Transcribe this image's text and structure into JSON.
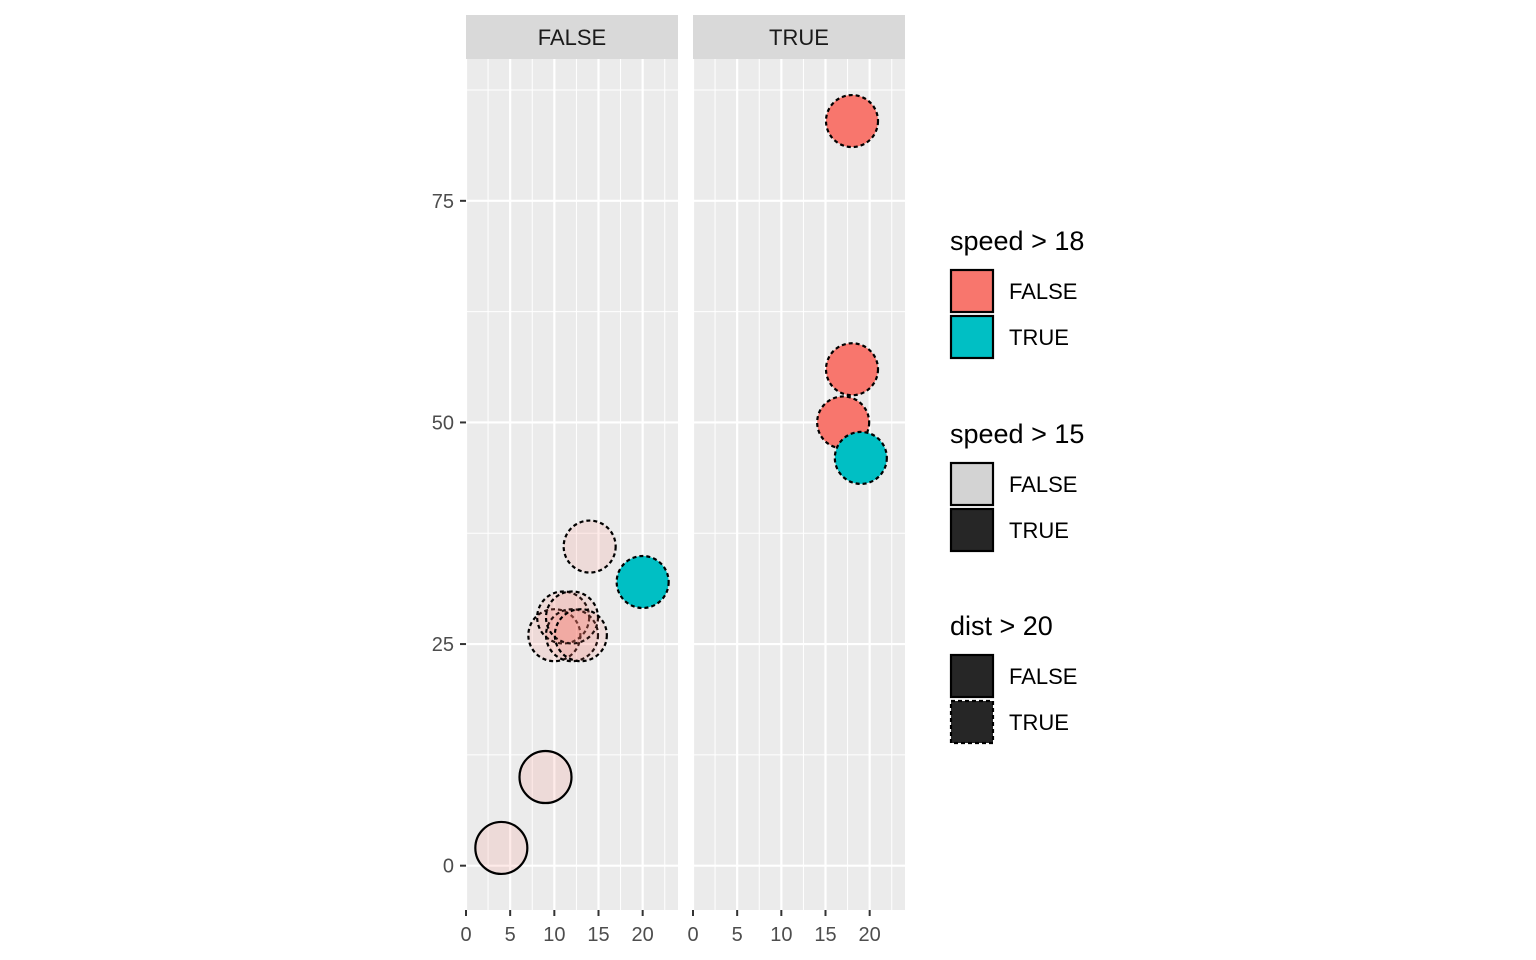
{
  "chart_data": {
    "type": "scatter",
    "facet_variable_values": [
      "FALSE",
      "TRUE"
    ],
    "x_ticks": [
      0,
      5,
      10,
      15,
      20
    ],
    "y_ticks": [
      0,
      25,
      50,
      75
    ],
    "xlim": [
      0,
      24
    ],
    "ylim": [
      -5,
      91
    ],
    "grid": true,
    "legend_position": "right",
    "points": [
      {
        "panel": "FALSE",
        "x": 4,
        "y": 2,
        "fill": "speed_gt_18_false",
        "alpha": 0.15,
        "linetype": "solid"
      },
      {
        "panel": "FALSE",
        "x": 9,
        "y": 10,
        "fill": "speed_gt_18_false",
        "alpha": 0.15,
        "linetype": "solid"
      },
      {
        "panel": "FALSE",
        "x": 10,
        "y": 26,
        "fill": "speed_gt_18_false",
        "alpha": 0.15,
        "linetype": "dashed"
      },
      {
        "panel": "FALSE",
        "x": 11,
        "y": 28,
        "fill": "speed_gt_18_false",
        "alpha": 0.15,
        "linetype": "dashed"
      },
      {
        "panel": "FALSE",
        "x": 12,
        "y": 26,
        "fill": "speed_gt_18_false",
        "alpha": 0.15,
        "linetype": "dashed"
      },
      {
        "panel": "FALSE",
        "x": 12,
        "y": 28,
        "fill": "speed_gt_18_false",
        "alpha": 0.15,
        "linetype": "dashed"
      },
      {
        "panel": "FALSE",
        "x": 13,
        "y": 26,
        "fill": "speed_gt_18_false",
        "alpha": 0.15,
        "linetype": "dashed"
      },
      {
        "panel": "FALSE",
        "x": 14,
        "y": 36,
        "fill": "speed_gt_18_false",
        "alpha": 0.15,
        "linetype": "dashed"
      },
      {
        "panel": "FALSE",
        "x": 20,
        "y": 32,
        "fill": "speed_gt_18_true",
        "alpha": 1.0,
        "linetype": "dashed"
      },
      {
        "panel": "TRUE",
        "x": 18,
        "y": 84,
        "fill": "speed_gt_18_false",
        "alpha": 1.0,
        "linetype": "dashed"
      },
      {
        "panel": "TRUE",
        "x": 18,
        "y": 56,
        "fill": "speed_gt_18_false",
        "alpha": 1.0,
        "linetype": "dashed"
      },
      {
        "panel": "TRUE",
        "x": 17,
        "y": 50,
        "fill": "speed_gt_18_false",
        "alpha": 1.0,
        "linetype": "dashed"
      },
      {
        "panel": "TRUE",
        "x": 19,
        "y": 46,
        "fill": "speed_gt_18_true",
        "alpha": 1.0,
        "linetype": "dashed"
      }
    ],
    "legends": [
      {
        "title": "speed > 18",
        "aesthetic": "fill",
        "keys": [
          {
            "label": "FALSE",
            "fill": "#F8766D",
            "linetype": "solid"
          },
          {
            "label": "TRUE",
            "fill": "#00BFC4",
            "linetype": "solid"
          }
        ]
      },
      {
        "title": "speed > 15",
        "aesthetic": "alpha",
        "keys": [
          {
            "label": "FALSE",
            "fill": "#d3d3d3",
            "linetype": "solid"
          },
          {
            "label": "TRUE",
            "fill": "#262626",
            "linetype": "solid"
          }
        ]
      },
      {
        "title": "dist > 20",
        "aesthetic": "linetype",
        "keys": [
          {
            "label": "FALSE",
            "fill": "#262626",
            "linetype": "solid"
          },
          {
            "label": "TRUE",
            "fill": "#262626",
            "linetype": "dashed"
          }
        ]
      }
    ]
  },
  "colors": {
    "speed_gt_18_false": "#F8766D",
    "speed_gt_18_true": "#00BFC4",
    "panel_background": "#EBEBEB",
    "strip_background": "#D9D9D9",
    "grid_major": "#FFFFFF",
    "point_border": "#000000"
  }
}
